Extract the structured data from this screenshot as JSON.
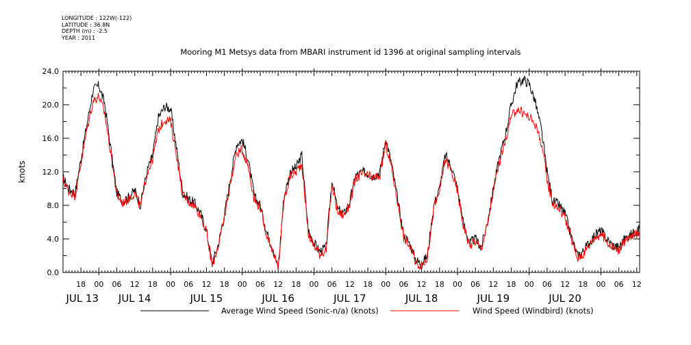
{
  "metadata": {
    "longitude": "LONGITUDE : 122W(-122)",
    "latitude": "LATITUDE : 36.8N",
    "depth": "DEPTH (m) : -2.5",
    "year": "YEAR : 2011"
  },
  "chart_data": {
    "type": "line",
    "title": "Mooring M1 Metsys data from MBARI instrument id 1396 at original sampling intervals",
    "xlabel": "",
    "ylabel": "knots",
    "xlim": [
      13.5,
      21.54
    ],
    "ylim": [
      0,
      24
    ],
    "yticks": [
      0,
      4,
      8,
      12,
      16,
      20,
      24
    ],
    "ytick_labels": [
      "0.0",
      "4.0",
      "8.0",
      "12.0",
      "16.0",
      "20.0",
      "24.0"
    ],
    "x_unit": "days of July 2011",
    "hour_ticks": [
      {
        "x": 13.75,
        "label": "18"
      },
      {
        "x": 14.0,
        "label": "00"
      },
      {
        "x": 14.25,
        "label": "06"
      },
      {
        "x": 14.5,
        "label": "12"
      },
      {
        "x": 14.75,
        "label": "18"
      },
      {
        "x": 15.0,
        "label": "00"
      },
      {
        "x": 15.25,
        "label": "06"
      },
      {
        "x": 15.5,
        "label": "12"
      },
      {
        "x": 15.75,
        "label": "18"
      },
      {
        "x": 16.0,
        "label": "00"
      },
      {
        "x": 16.25,
        "label": "06"
      },
      {
        "x": 16.5,
        "label": "12"
      },
      {
        "x": 16.75,
        "label": "18"
      },
      {
        "x": 17.0,
        "label": "00"
      },
      {
        "x": 17.25,
        "label": "06"
      },
      {
        "x": 17.5,
        "label": "12"
      },
      {
        "x": 17.75,
        "label": "18"
      },
      {
        "x": 18.0,
        "label": "00"
      },
      {
        "x": 18.25,
        "label": "06"
      },
      {
        "x": 18.5,
        "label": "12"
      },
      {
        "x": 18.75,
        "label": "18"
      },
      {
        "x": 19.0,
        "label": "00"
      },
      {
        "x": 19.25,
        "label": "06"
      },
      {
        "x": 19.5,
        "label": "12"
      },
      {
        "x": 19.75,
        "label": "18"
      },
      {
        "x": 20.0,
        "label": "00"
      },
      {
        "x": 20.25,
        "label": "06"
      },
      {
        "x": 20.5,
        "label": "12"
      },
      {
        "x": 20.75,
        "label": "18"
      },
      {
        "x": 21.0,
        "label": "00"
      },
      {
        "x": 21.25,
        "label": "06"
      },
      {
        "x": 21.5,
        "label": "12"
      }
    ],
    "day_labels": [
      {
        "x": 13.77,
        "label": "JUL 13"
      },
      {
        "x": 14.5,
        "label": "JUL 14"
      },
      {
        "x": 15.5,
        "label": "JUL 15"
      },
      {
        "x": 16.5,
        "label": "JUL 16"
      },
      {
        "x": 17.5,
        "label": "JUL 17"
      },
      {
        "x": 18.5,
        "label": "JUL 18"
      },
      {
        "x": 19.5,
        "label": "JUL 19"
      },
      {
        "x": 20.5,
        "label": "JUL 20"
      }
    ],
    "legend": [
      {
        "name": "Average Wind Speed (Sonic-n/a) (knots)",
        "color": "#000000"
      },
      {
        "name": "Wind Speed (Windbird) (knots)",
        "color": "#ff0000"
      }
    ],
    "series": [
      {
        "name": "Average Wind Speed (Sonic-n/a) (knots)",
        "color": "#000000",
        "x": [
          13.5,
          13.58,
          13.67,
          13.75,
          13.83,
          13.92,
          14.0,
          14.08,
          14.17,
          14.25,
          14.33,
          14.42,
          14.5,
          14.58,
          14.67,
          14.75,
          14.83,
          14.92,
          15.0,
          15.08,
          15.17,
          15.25,
          15.33,
          15.42,
          15.5,
          15.58,
          15.67,
          15.75,
          15.83,
          15.92,
          16.0,
          16.08,
          16.17,
          16.25,
          16.33,
          16.42,
          16.5,
          16.58,
          16.67,
          16.75,
          16.83,
          16.92,
          17.0,
          17.08,
          17.17,
          17.25,
          17.33,
          17.42,
          17.5,
          17.58,
          17.67,
          17.75,
          17.83,
          17.92,
          18.0,
          18.08,
          18.17,
          18.25,
          18.33,
          18.42,
          18.5,
          18.58,
          18.67,
          18.75,
          18.83,
          18.92,
          19.0,
          19.08,
          19.17,
          19.25,
          19.33,
          19.42,
          19.5,
          19.58,
          19.67,
          19.75,
          19.83,
          19.92,
          20.0,
          20.08,
          20.17,
          20.25,
          20.33,
          20.42,
          20.5,
          20.58,
          20.67,
          20.75,
          20.83,
          20.92,
          21.0,
          21.08,
          21.17,
          21.25,
          21.33,
          21.42,
          21.5,
          21.54
        ],
        "y": [
          11.3,
          10.0,
          9.5,
          13.5,
          17.5,
          21.8,
          22.3,
          20.2,
          14.5,
          9.5,
          8.5,
          9.0,
          9.8,
          8.0,
          12.0,
          14.0,
          18.5,
          19.8,
          19.5,
          15.0,
          9.5,
          8.8,
          8.3,
          7.0,
          5.0,
          1.0,
          3.5,
          6.8,
          11.0,
          15.3,
          15.8,
          13.5,
          9.0,
          8.0,
          5.0,
          3.0,
          0.5,
          9.0,
          12.0,
          12.5,
          14.0,
          5.0,
          3.5,
          2.5,
          3.0,
          11.0,
          7.5,
          7.0,
          8.5,
          11.5,
          12.0,
          11.8,
          11.5,
          12.0,
          16.0,
          13.0,
          8.5,
          4.5,
          3.5,
          1.5,
          1.0,
          2.0,
          8.0,
          10.0,
          14.0,
          12.5,
          10.0,
          6.0,
          3.5,
          4.0,
          3.0,
          6.0,
          10.0,
          13.5,
          16.5,
          20.0,
          22.5,
          23.0,
          22.5,
          20.5,
          17.0,
          12.0,
          8.5,
          8.0,
          7.0,
          4.5,
          2.0,
          2.5,
          3.5,
          4.5,
          5.0,
          4.0,
          3.2,
          3.0,
          4.0,
          4.5,
          5.0,
          5.3
        ]
      },
      {
        "name": "Wind Speed (Windbird) (knots)",
        "color": "#ff0000",
        "x": [
          13.5,
          13.58,
          13.67,
          13.75,
          13.83,
          13.92,
          14.0,
          14.08,
          14.17,
          14.25,
          14.33,
          14.42,
          14.5,
          14.58,
          14.67,
          14.75,
          14.83,
          14.92,
          15.0,
          15.08,
          15.17,
          15.25,
          15.33,
          15.42,
          15.5,
          15.58,
          15.67,
          15.75,
          15.83,
          15.92,
          16.0,
          16.08,
          16.17,
          16.25,
          16.33,
          16.42,
          16.5,
          16.58,
          16.67,
          16.75,
          16.83,
          16.92,
          17.0,
          17.08,
          17.17,
          17.25,
          17.33,
          17.42,
          17.5,
          17.58,
          17.67,
          17.75,
          17.83,
          17.92,
          18.0,
          18.08,
          18.17,
          18.25,
          18.33,
          18.42,
          18.5,
          18.58,
          18.67,
          18.75,
          18.83,
          18.92,
          19.0,
          19.08,
          19.17,
          19.25,
          19.33,
          19.42,
          19.5,
          19.58,
          19.67,
          19.75,
          19.83,
          19.92,
          20.0,
          20.08,
          20.17,
          20.25,
          20.33,
          20.42,
          20.5,
          20.58,
          20.67,
          20.75,
          20.83,
          20.92,
          21.0,
          21.08,
          21.17,
          21.25,
          21.33,
          21.42,
          21.5,
          21.54
        ],
        "y": [
          11.0,
          9.7,
          9.2,
          13.0,
          16.8,
          20.5,
          21.0,
          19.0,
          14.0,
          9.3,
          8.3,
          8.8,
          9.5,
          7.8,
          11.8,
          13.5,
          17.0,
          18.3,
          18.0,
          14.2,
          9.2,
          8.5,
          8.0,
          6.8,
          4.8,
          0.8,
          3.3,
          6.5,
          10.5,
          14.2,
          14.6,
          12.8,
          8.6,
          7.8,
          4.8,
          2.8,
          0.3,
          8.6,
          11.5,
          12.0,
          13.0,
          4.6,
          3.2,
          2.2,
          2.7,
          10.4,
          7.2,
          6.8,
          8.2,
          11.2,
          11.7,
          11.5,
          11.2,
          11.6,
          15.3,
          12.5,
          8.2,
          4.2,
          3.2,
          1.2,
          0.8,
          1.8,
          7.7,
          9.7,
          13.5,
          12.0,
          9.6,
          5.7,
          3.2,
          3.7,
          2.8,
          5.8,
          9.7,
          13.0,
          15.8,
          18.5,
          19.5,
          19.0,
          18.5,
          17.8,
          15.5,
          11.0,
          8.2,
          7.6,
          6.6,
          4.2,
          1.7,
          2.2,
          3.2,
          4.2,
          4.6,
          3.7,
          2.9,
          2.7,
          3.7,
          4.2,
          4.6,
          5.0
        ]
      }
    ]
  }
}
